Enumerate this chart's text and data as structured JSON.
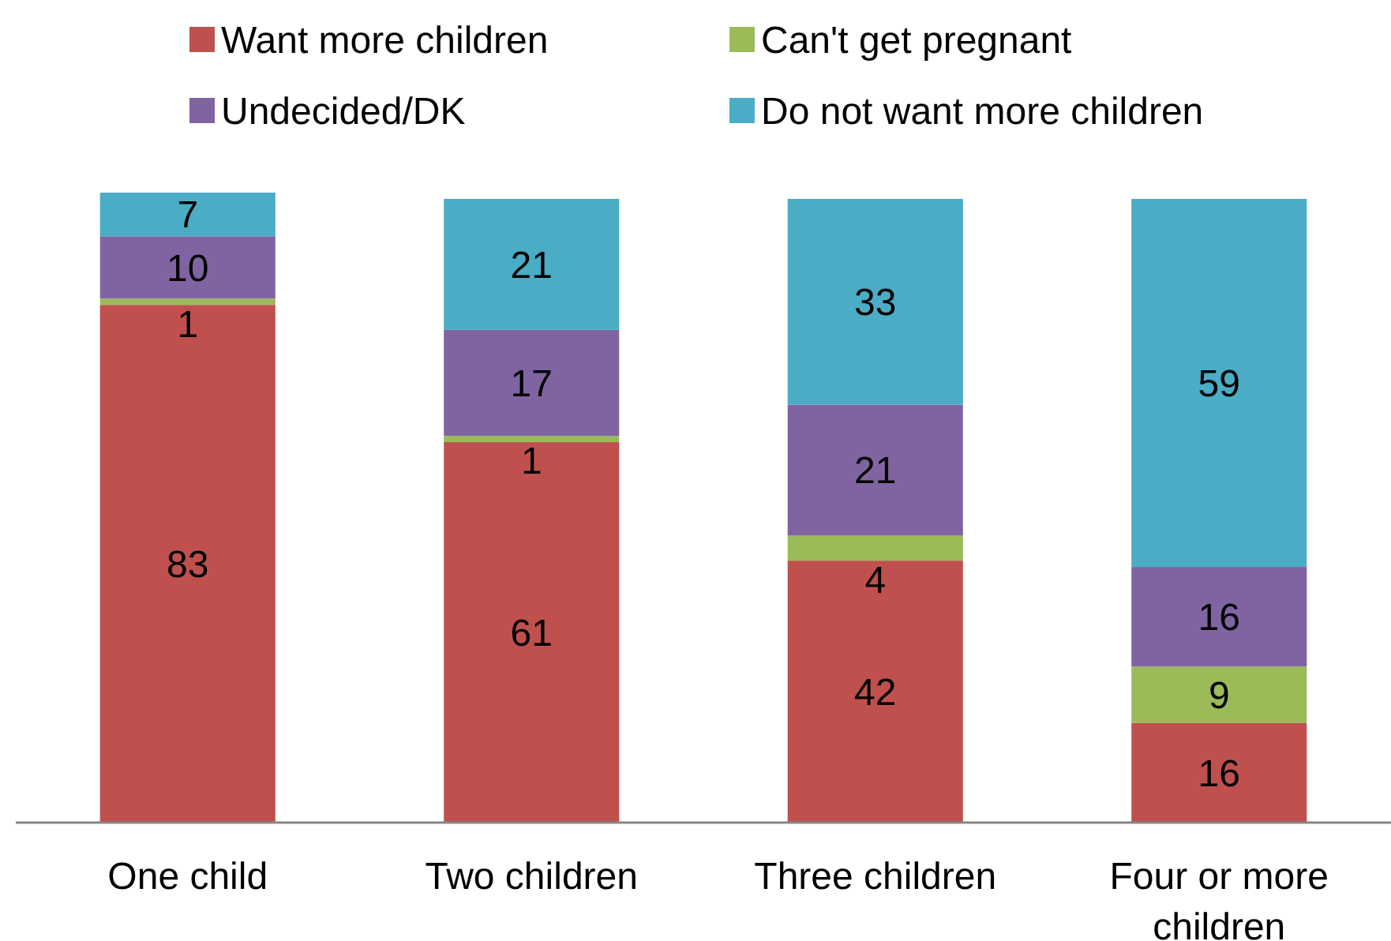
{
  "chart_data": {
    "type": "bar",
    "stacked": true,
    "data_labels": true,
    "legend": "top",
    "categories": [
      "One child",
      "Two children",
      "Three children",
      "Four or more children"
    ],
    "series": [
      {
        "name": "Want more children",
        "color": "#c0504d",
        "values": [
          83,
          61,
          42,
          16
        ]
      },
      {
        "name": "Can't get pregnant",
        "color": "#9bbb59",
        "values": [
          1,
          1,
          4,
          9
        ]
      },
      {
        "name": "Undecided/DK",
        "color": "#8064a2",
        "values": [
          10,
          17,
          21,
          16
        ]
      },
      {
        "name": "Do not want more children",
        "color": "#4bacc6",
        "values": [
          7,
          21,
          33,
          59
        ]
      }
    ]
  }
}
